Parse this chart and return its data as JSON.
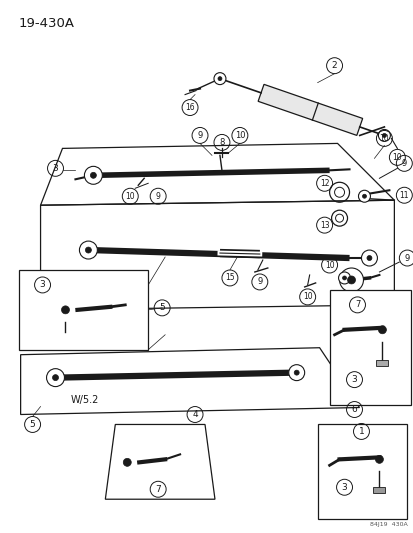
{
  "title": "19-430A",
  "watermark": "84J19  430A",
  "bg_color": "#ffffff",
  "line_color": "#1a1a1a",
  "figure_width": 4.14,
  "figure_height": 5.33,
  "dpi": 100
}
